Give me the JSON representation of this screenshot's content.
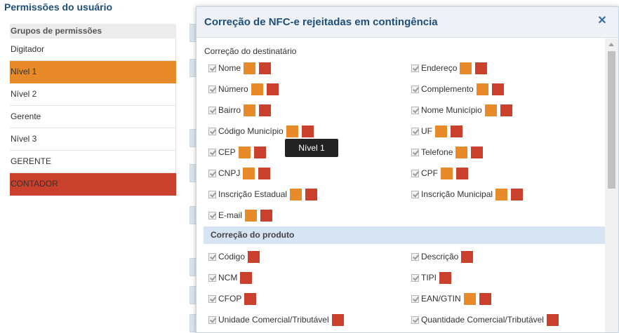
{
  "page_title": "Permissões do usuário",
  "groups": {
    "header": "Grupos de permissões",
    "items": [
      {
        "label": "Digitador",
        "state": "none"
      },
      {
        "label": "Nível 1",
        "state": "orange"
      },
      {
        "label": "Nível 2",
        "state": "none"
      },
      {
        "label": "Gerente",
        "state": "none"
      },
      {
        "label": "Nível 3",
        "state": "none"
      },
      {
        "label": "GERENTE",
        "state": "none"
      },
      {
        "label": "CONTADOR",
        "state": "red"
      }
    ]
  },
  "modal": {
    "title": "Correção de NFC-e rejeitadas em contingência",
    "close_icon": "close-x-icon",
    "section_destinatario": "Correção do destinatário",
    "section_produto": "Correção do produto",
    "tooltip": "Nível 1",
    "destinatario_fields": [
      {
        "label": "Nome",
        "orange": true,
        "red": true
      },
      {
        "label": "Endereço",
        "orange": true,
        "red": true
      },
      {
        "label": "Número",
        "orange": true,
        "red": true
      },
      {
        "label": "Complemento",
        "orange": true,
        "red": true
      },
      {
        "label": "Bairro",
        "orange": true,
        "red": true
      },
      {
        "label": "Nome Município",
        "orange": true,
        "red": true
      },
      {
        "label": "Código Município",
        "orange": true,
        "red": true
      },
      {
        "label": "UF",
        "orange": true,
        "red": true
      },
      {
        "label": "CEP",
        "orange": true,
        "red": true
      },
      {
        "label": "Telefone",
        "orange": true,
        "red": true
      },
      {
        "label": "CNPJ",
        "orange": true,
        "red": true
      },
      {
        "label": "CPF",
        "orange": true,
        "red": true
      },
      {
        "label": "Inscrição Estadual",
        "orange": true,
        "red": true
      },
      {
        "label": "Inscrição Municipal",
        "orange": true,
        "red": true
      },
      {
        "label": "E-mail",
        "orange": true,
        "red": true
      }
    ],
    "produto_fields": [
      {
        "label": "Código",
        "orange": false,
        "red": true
      },
      {
        "label": "Descrição",
        "orange": false,
        "red": true
      },
      {
        "label": "NCM",
        "orange": false,
        "red": true
      },
      {
        "label": "TIPI",
        "orange": false,
        "red": true
      },
      {
        "label": "CFOP",
        "orange": false,
        "red": true
      },
      {
        "label": "EAN/GTIN",
        "orange": true,
        "red": true
      },
      {
        "label": "Unidade Comercial/Tributável",
        "orange": false,
        "red": true
      },
      {
        "label": "Quantidade Comercial/Tributável",
        "orange": false,
        "red": true
      }
    ]
  },
  "colors": {
    "orange": "#e8892a",
    "red": "#c9402c",
    "title": "#1f4e79",
    "section_bar": "#d6e4f3"
  }
}
